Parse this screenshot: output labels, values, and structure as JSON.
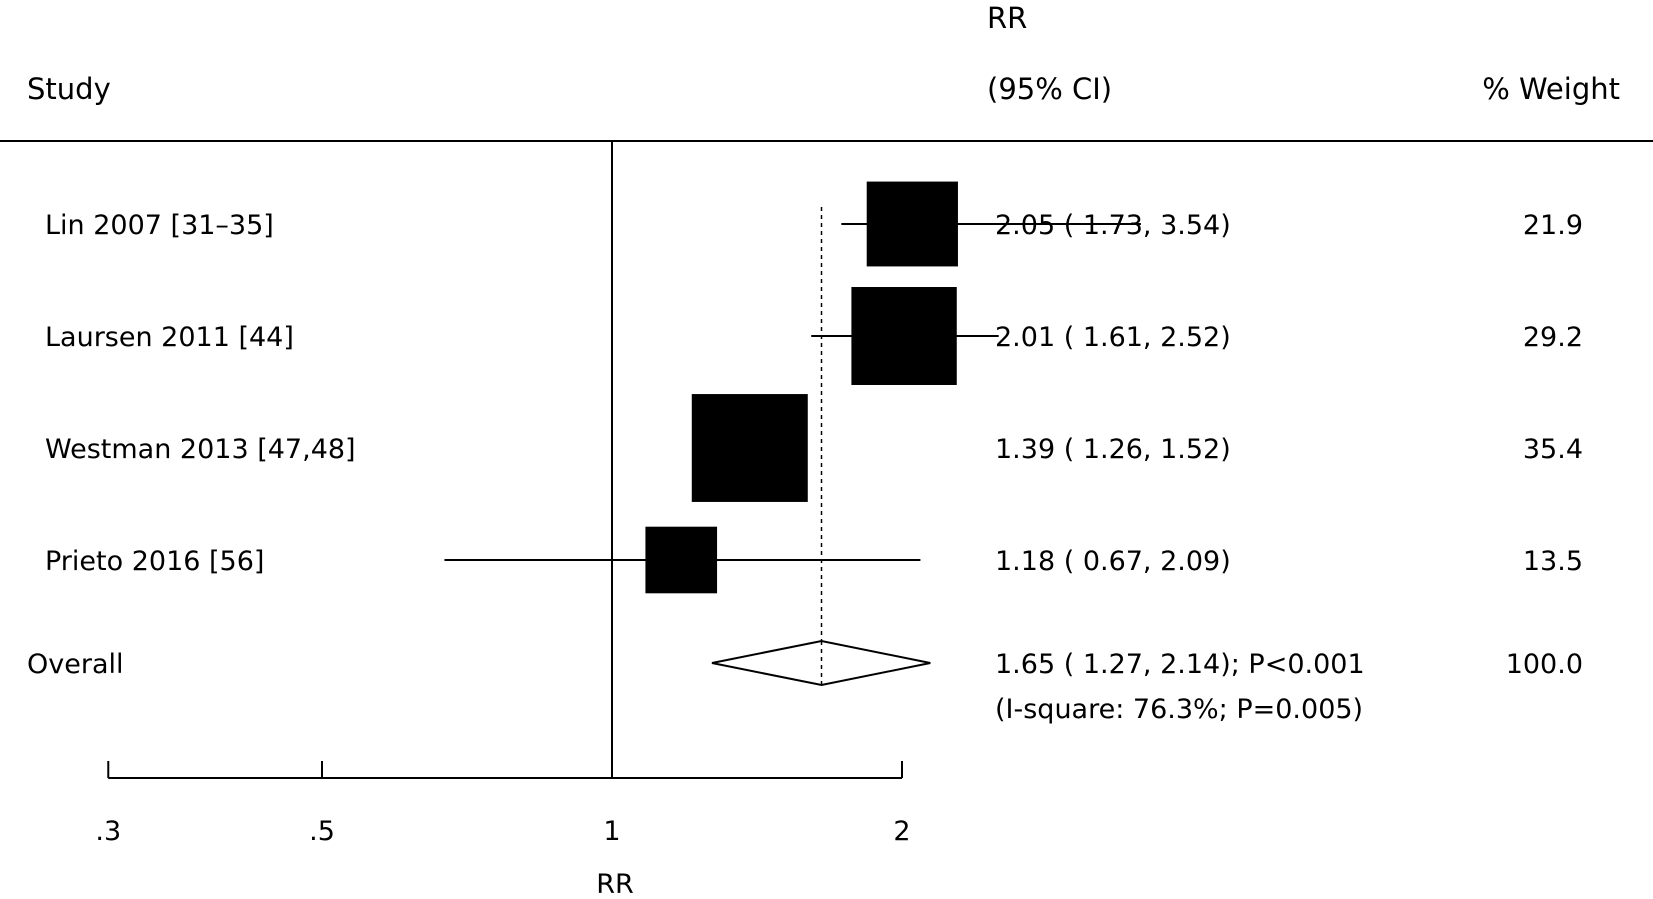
{
  "headers": {
    "study": "Study",
    "rr_line1": "RR",
    "rr_line2": "(95% CI)",
    "weight": "% Weight"
  },
  "chart_data": {
    "type": "forest",
    "xlabel": "RR",
    "x_scale": "log",
    "xlim": [
      0.3,
      2.2
    ],
    "xticks": [
      0.3,
      0.5,
      1,
      2
    ],
    "xtick_labels": [
      ".3",
      ".5",
      "1",
      "2"
    ],
    "null_line": 1,
    "pooled_reference": 1.65,
    "studies": [
      {
        "label": "Lin 2007 [31–35]",
        "rr": 2.05,
        "lo": 1.73,
        "hi": 3.54,
        "ci_text": "2.05 ( 1.73, 3.54)",
        "weight": 21.9,
        "weight_text": "21.9"
      },
      {
        "label": "Laursen 2011 [44]",
        "rr": 2.01,
        "lo": 1.61,
        "hi": 2.52,
        "ci_text": "2.01 ( 1.61, 2.52)",
        "weight": 29.2,
        "weight_text": "29.2"
      },
      {
        "label": "Westman 2013 [47,48]",
        "rr": 1.39,
        "lo": 1.26,
        "hi": 1.52,
        "ci_text": "1.39 ( 1.26, 1.52)",
        "weight": 35.4,
        "weight_text": "35.4"
      },
      {
        "label": "Prieto 2016 [56]",
        "rr": 1.18,
        "lo": 0.67,
        "hi": 2.09,
        "ci_text": "1.18 ( 0.67, 2.09)",
        "weight": 13.5,
        "weight_text": "13.5"
      }
    ],
    "overall": {
      "label": "Overall",
      "rr": 1.65,
      "lo": 1.27,
      "hi": 2.14,
      "ci_text": "1.65 ( 1.27, 2.14); P<0.001",
      "heterogeneity_text": "(I-square: 76.3%; P=0.005)",
      "weight_text": "100.0"
    }
  }
}
